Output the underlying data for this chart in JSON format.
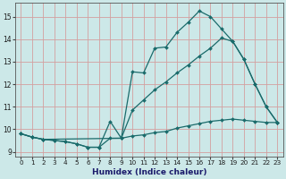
{
  "title": "",
  "xlabel": "Humidex (Indice chaleur)",
  "bg_color": "#cce8e8",
  "line_color": "#1a6b6b",
  "xlim": [
    -0.5,
    23.5
  ],
  "ylim": [
    8.8,
    15.6
  ],
  "xticks": [
    0,
    1,
    2,
    3,
    4,
    5,
    6,
    7,
    8,
    9,
    10,
    11,
    12,
    13,
    14,
    15,
    16,
    17,
    18,
    19,
    20,
    21,
    22,
    23
  ],
  "yticks": [
    9,
    10,
    11,
    12,
    13,
    14,
    15
  ],
  "line1_x": [
    0,
    1,
    2,
    3,
    4,
    5,
    6,
    7,
    8,
    9,
    10,
    11,
    12,
    13,
    14,
    15,
    16,
    17,
    18,
    19,
    20,
    21,
    22,
    23
  ],
  "line1_y": [
    9.8,
    9.65,
    9.55,
    9.5,
    9.45,
    9.35,
    9.2,
    9.2,
    9.6,
    9.6,
    9.7,
    9.75,
    9.85,
    9.9,
    10.05,
    10.15,
    10.25,
    10.35,
    10.4,
    10.45,
    10.4,
    10.35,
    10.3,
    10.3
  ],
  "line2_x": [
    0,
    1,
    2,
    3,
    4,
    5,
    6,
    7,
    8,
    9,
    10,
    11,
    12,
    13,
    14,
    15,
    16,
    17,
    18,
    19,
    20,
    21,
    22,
    23
  ],
  "line2_y": [
    9.8,
    9.65,
    9.55,
    9.5,
    9.45,
    9.35,
    9.2,
    9.2,
    10.35,
    9.6,
    12.55,
    12.5,
    13.6,
    13.65,
    14.3,
    14.75,
    15.25,
    15.0,
    14.45,
    13.9,
    13.1,
    12.0,
    11.0,
    10.3
  ],
  "line3_x": [
    0,
    1,
    2,
    9,
    10,
    11,
    12,
    13,
    14,
    15,
    16,
    17,
    18,
    19,
    20,
    21,
    22,
    23
  ],
  "line3_y": [
    9.8,
    9.65,
    9.55,
    9.6,
    10.85,
    11.3,
    11.75,
    12.1,
    12.5,
    12.85,
    13.25,
    13.6,
    14.05,
    13.9,
    13.1,
    12.0,
    11.0,
    10.3
  ]
}
